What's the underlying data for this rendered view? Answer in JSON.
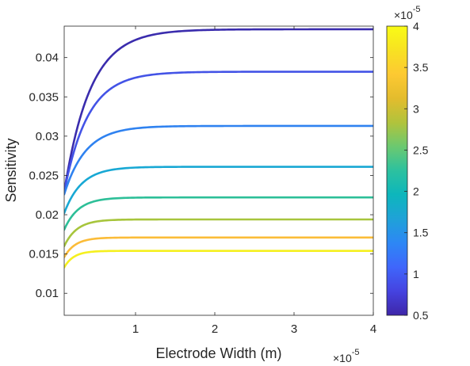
{
  "chart_data": {
    "type": "line",
    "title": "",
    "xlabel": "Electrode Width (m)",
    "ylabel": "Sensitivity",
    "x_multiplier_label": "×10",
    "x_multiplier_exp": "-5",
    "xlim": [
      0.1,
      4.0
    ],
    "ylim": [
      0.0072,
      0.044
    ],
    "xticks": [
      1,
      2,
      3,
      4
    ],
    "xtick_labels": [
      "1",
      "2",
      "3",
      "4"
    ],
    "yticks": [
      0.01,
      0.015,
      0.02,
      0.025,
      0.03,
      0.035,
      0.04
    ],
    "ytick_labels": [
      "0.01",
      "0.015",
      "0.02",
      "0.025",
      "0.03",
      "0.035",
      "0.04"
    ],
    "grid": false,
    "colorbar": {
      "range": [
        0.5,
        4
      ],
      "ticks": [
        0.5,
        1,
        1.5,
        2,
        2.5,
        3,
        3.5,
        4
      ],
      "tick_labels": [
        "0.5",
        "1",
        "1.5",
        "2",
        "2.5",
        "3",
        "3.5",
        "4"
      ],
      "multiplier_label": "×10",
      "multiplier_exp": "-5",
      "colormap": [
        "#3e26a8",
        "#4543e0",
        "#3f66fb",
        "#2d87f5",
        "#1fa2d8",
        "#0db6bc",
        "#2cc19f",
        "#6bc970",
        "#b1c33c",
        "#e3bc2d",
        "#fdc932",
        "#f8e222",
        "#f9fb15"
      ]
    },
    "series": [
      {
        "color": "#3a2cad",
        "y_start": 0.0229,
        "y_plateau": 0.0436,
        "tau": 0.33
      },
      {
        "color": "#4353e6",
        "y_start": 0.0229,
        "y_plateau": 0.0382,
        "tau": 0.3
      },
      {
        "color": "#2f82f0",
        "y_start": 0.0226,
        "y_plateau": 0.0313,
        "tau": 0.27
      },
      {
        "color": "#18a8d4",
        "y_start": 0.0202,
        "y_plateau": 0.0261,
        "tau": 0.22
      },
      {
        "color": "#2dbf98",
        "y_start": 0.0181,
        "y_plateau": 0.0222,
        "tau": 0.18
      },
      {
        "color": "#a7c53c",
        "y_start": 0.016,
        "y_plateau": 0.0194,
        "tau": 0.16
      },
      {
        "color": "#fbbc38",
        "y_start": 0.0146,
        "y_plateau": 0.0171,
        "tau": 0.14
      },
      {
        "color": "#f5f01f",
        "y_start": 0.0133,
        "y_plateau": 0.0154,
        "tau": 0.12
      }
    ]
  }
}
